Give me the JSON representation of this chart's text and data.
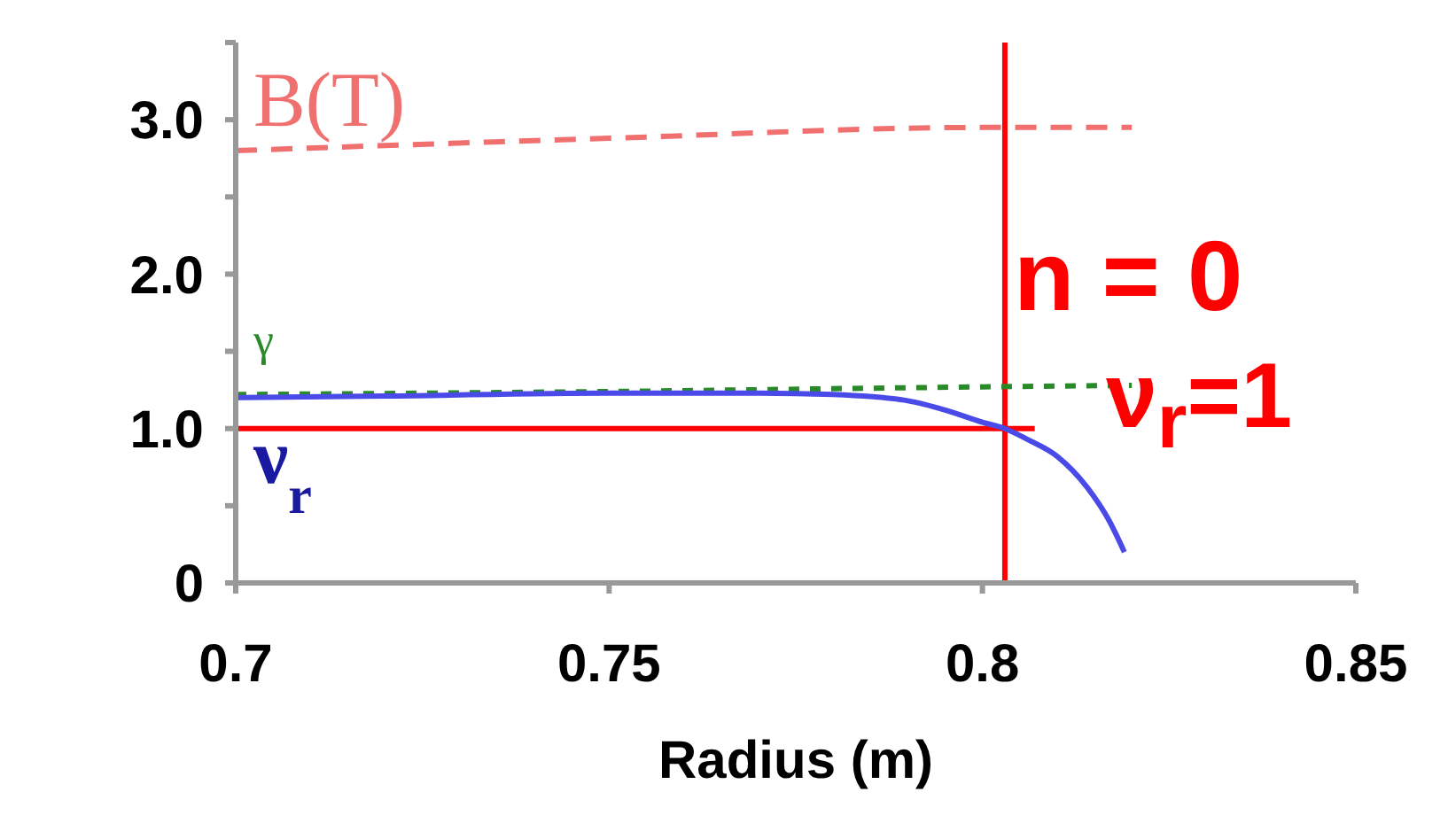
{
  "chart_data": {
    "type": "line",
    "xlabel": "Radius (m)",
    "xlim": [
      0.7,
      0.85
    ],
    "xticks": [
      0.7,
      0.75,
      0.8,
      0.85
    ],
    "ylim": [
      0,
      3.5
    ],
    "yticks": [
      {
        "value": 0,
        "label": "0"
      },
      {
        "value": 0.5,
        "label": null
      },
      {
        "value": 1,
        "label": "1.0"
      },
      {
        "value": 1.5,
        "label": null
      },
      {
        "value": 2,
        "label": "2.0"
      },
      {
        "value": 2.5,
        "label": null
      },
      {
        "value": 3,
        "label": "3.0"
      },
      {
        "value": 3.5,
        "label": null
      }
    ],
    "marker": "none",
    "series": [
      {
        "name": "B(T)",
        "color": "#f07070",
        "line_style": "dashed",
        "x": [
          0.7,
          0.75,
          0.8,
          0.82
        ],
        "values": [
          2.8,
          2.88,
          2.95,
          2.95
        ]
      },
      {
        "name": "γ",
        "color": "#2a8a2a",
        "line_style": "dotted",
        "x": [
          0.7,
          0.75,
          0.8,
          0.82
        ],
        "values": [
          1.22,
          1.24,
          1.27,
          1.28
        ]
      },
      {
        "color": "#ff0000",
        "line_style": "solid",
        "x": [
          0.7,
          0.807
        ],
        "values": [
          1,
          1
        ]
      },
      {
        "name": "ν$_{r}$",
        "color": "#4a4ae8",
        "line_style": "solid",
        "x": [
          0.7,
          0.72,
          0.75,
          0.77,
          0.78,
          0.79,
          0.795,
          0.8,
          0.803,
          0.806,
          0.81,
          0.814,
          0.817,
          0.819
        ],
        "values": [
          1.2,
          1.21,
          1.23,
          1.23,
          1.22,
          1.18,
          1.12,
          1.04,
          1.0,
          0.93,
          0.82,
          0.62,
          0.4,
          0.2
        ]
      }
    ],
    "ref_lines": [
      {
        "axis": "x",
        "value": 0.803,
        "color": "#ff0000"
      }
    ],
    "annotations": [
      "n = 0",
      "ν$_{r}$=1"
    ]
  }
}
